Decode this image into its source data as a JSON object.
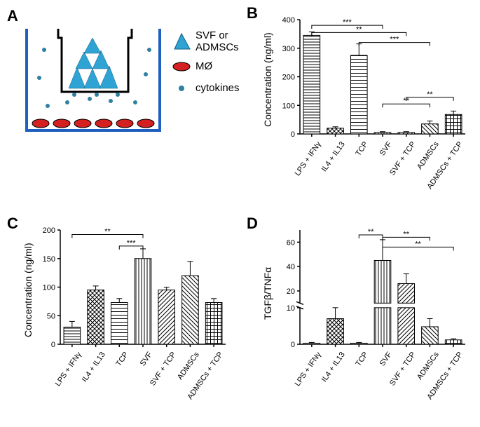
{
  "labels": {
    "panelA": "A",
    "panelB": "B",
    "panelC": "C",
    "panelD": "D"
  },
  "legendA": {
    "item1_line1": "SVF or",
    "item1_line2": "ADMSCs",
    "item2": "MØ",
    "item3": "cytokines"
  },
  "diagramA": {
    "well_outline_color": "#1f5fbf",
    "insert_outline_color": "#000000",
    "cell_triangle_color": "#2fa4d4",
    "macrophage_color": "#d42020",
    "cytokine_dot_color": "#2f80a0",
    "background": "#ffffff"
  },
  "chartB": {
    "type": "bar",
    "y_title": "Concentration (ng/ml)",
    "ylim": [
      0,
      400
    ],
    "ytick_positions": [
      0,
      100,
      200,
      300,
      400
    ],
    "ytick_labels": [
      "0",
      "100",
      "200",
      "300",
      "400"
    ],
    "categories": [
      "LPS + IFNγ",
      "IL4 + IL13",
      "TCP",
      "SVF",
      "SVF + TCP",
      "ADMSCs",
      "ADMSCs + TCP"
    ],
    "values": [
      345,
      20,
      275,
      5,
      5,
      35,
      68
    ],
    "errors": [
      12,
      5,
      40,
      3,
      3,
      10,
      12
    ],
    "patterns": [
      "hline",
      "check",
      "hline2",
      "vline",
      "diagL",
      "diagR",
      "grid"
    ],
    "bar_width": 0.7,
    "bar_stroke": "#000000",
    "bg": "#ffffff",
    "sig": [
      {
        "from": 0,
        "to": 3,
        "stars": "***",
        "y": 380
      },
      {
        "from": 0,
        "to": 4,
        "stars": "**",
        "y": 355
      },
      {
        "from": 2,
        "to": 5,
        "stars": "***",
        "y": 320
      },
      {
        "from": 3,
        "to": 5,
        "stars": "**",
        "y": 105
      },
      {
        "from": 4,
        "to": 6,
        "stars": "**",
        "y": 128
      }
    ]
  },
  "chartC": {
    "type": "bar",
    "y_title": "Concentration (ng/ml)",
    "ylim": [
      0,
      200
    ],
    "ytick_positions": [
      0,
      50,
      100,
      150,
      200
    ],
    "ytick_labels": [
      "0",
      "50",
      "100",
      "150",
      "200"
    ],
    "categories": [
      "LPS + IFNγ",
      "IL4 + IL13",
      "TCP",
      "SVF",
      "SVF + TCP",
      "ADMSCs",
      "ADMSCs + TCP"
    ],
    "values": [
      30,
      95,
      73,
      150,
      95,
      120,
      73
    ],
    "errors": [
      10,
      7,
      7,
      17,
      5,
      25,
      7
    ],
    "patterns": [
      "hline",
      "check",
      "hline2",
      "vline",
      "diagL",
      "diagR",
      "grid"
    ],
    "bar_width": 0.7,
    "bar_stroke": "#000000",
    "bg": "#ffffff",
    "sig": [
      {
        "from": 0,
        "to": 3,
        "stars": "**",
        "y": 192
      },
      {
        "from": 2,
        "to": 3,
        "stars": "***",
        "y": 172
      }
    ]
  },
  "chartD": {
    "type": "bar",
    "y_title": "TGFβ/TNFα",
    "ylim_lower": [
      0,
      10
    ],
    "ylim_upper": [
      10,
      70
    ],
    "ytick_positions_lower": [
      0,
      10
    ],
    "ytick_positions_upper": [
      20,
      40,
      60
    ],
    "ytick_labels_lower": [
      "0",
      "10"
    ],
    "ytick_labels_upper": [
      "20",
      "40",
      "60"
    ],
    "categories": [
      "LPS + IFNγ",
      "IL4 + IL13",
      "TCP",
      "SVF",
      "SVF + TCP",
      "ADMSCs",
      "ADMSCs + TCP"
    ],
    "values": [
      0.3,
      7,
      0.3,
      45,
      26,
      4.8,
      1.2
    ],
    "errors": [
      0.2,
      3,
      0.2,
      17,
      8,
      2.2,
      0.3
    ],
    "patterns": [
      "hline",
      "check",
      "hline2",
      "vline",
      "diagL",
      "diagR",
      "grid"
    ],
    "bar_width": 0.7,
    "bar_stroke": "#000000",
    "bg": "#ffffff",
    "sig": [
      {
        "from": 2,
        "to": 3,
        "stars": "**",
        "y_upper": 66
      },
      {
        "from": 3,
        "to": 5,
        "stars": "**",
        "y_upper": 64
      },
      {
        "from": 3,
        "to": 6,
        "stars": "**",
        "y_upper": 56
      }
    ]
  },
  "palette": {
    "axis": "#000000",
    "bar_fill": "#ffffff",
    "bar_stroke": "#000000"
  },
  "fonts": {
    "panel_label_size_pt": 18,
    "axis_title_size_pt": 12,
    "tick_label_size_pt": 10,
    "legend_size_pt": 13
  }
}
